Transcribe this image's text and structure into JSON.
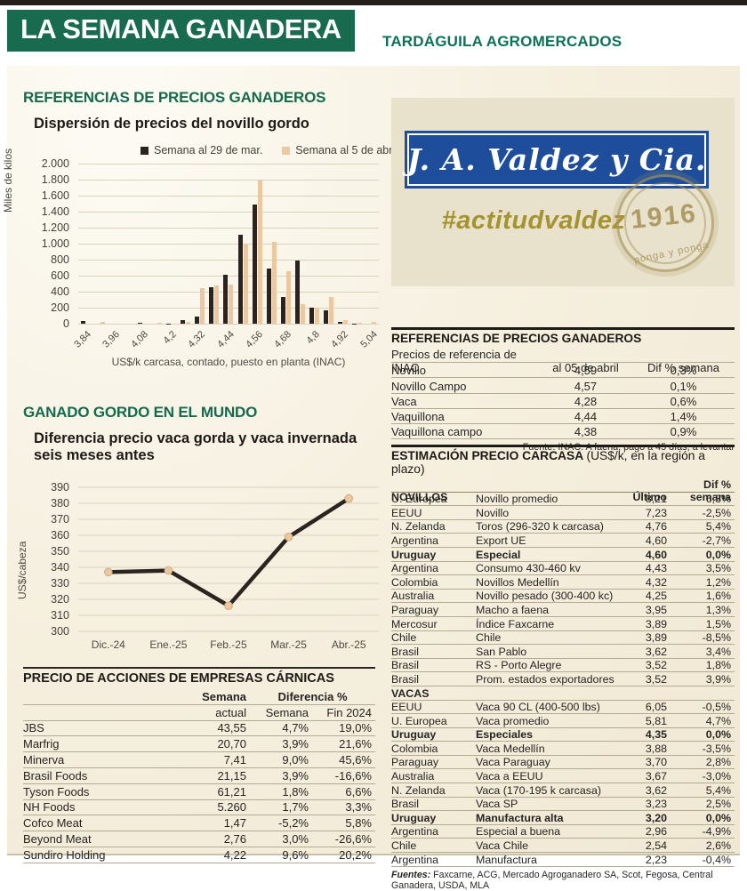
{
  "masthead": {
    "title": "LA SEMANA GANADERA",
    "brand": "TARDÁGUILA AGROMERCADOS"
  },
  "sections": {
    "prices_title": "REFERENCIAS DE PRECIOS GANADEROS",
    "world_title": "GANADO GORDO EN EL MUNDO",
    "world_chart_title_line1": "Diferencia precio vaca gorda y vaca invernada",
    "world_chart_title_line2": "seis meses antes"
  },
  "chart_data": [
    {
      "type": "bar",
      "title": "Dispersión de precios del novillo gordo",
      "categories": [
        "3,84",
        "3,9",
        "3,96",
        "4,02",
        "4,08",
        "4,14",
        "4,2",
        "4,26",
        "4,32",
        "4,38",
        "4,44",
        "4,5",
        "4,56",
        "4,62",
        "4,68",
        "4,74",
        "4,8",
        "4,86",
        "4,92",
        "4,98",
        "5,04"
      ],
      "tick_labels": [
        "3,84",
        "3,96",
        "4,08",
        "4,2",
        "4,32",
        "4,44",
        "4,56",
        "4,68",
        "4,8",
        "4,92",
        "5,04"
      ],
      "series": [
        {
          "name": "Semana al 29 de mar.",
          "color": "#2b2320",
          "values": [
            30,
            0,
            0,
            0,
            10,
            0,
            5,
            40,
            90,
            460,
            610,
            1110,
            1490,
            690,
            330,
            790,
            200,
            170,
            20,
            5,
            0
          ]
        },
        {
          "name": "Semana al 5 de abr.",
          "color": "#ecc8a0",
          "values": [
            0,
            25,
            0,
            0,
            0,
            8,
            5,
            20,
            450,
            480,
            485,
            1000,
            1790,
            1020,
            660,
            240,
            200,
            330,
            40,
            10,
            20
          ]
        }
      ],
      "ylabel": "Miles de kilos",
      "xlabel": "US$/k carcasa, contado, puesto en planta (INAC)",
      "ylim": [
        0,
        2000
      ],
      "yticks": [
        "2.000",
        "1.800",
        "1.600",
        "1.400",
        "1.200",
        "1.000",
        "800",
        "600",
        "400",
        "200",
        "0"
      ],
      "grid": true,
      "legend_position": "top"
    },
    {
      "type": "line",
      "title": "Diferencia precio vaca gorda y vaca invernada seis meses antes",
      "x": [
        "Dic.-24",
        "Ene.-25",
        "Feb.-25",
        "Mar.-25",
        "Abr.-25"
      ],
      "values": [
        337,
        338,
        316,
        359,
        383
      ],
      "ylabel": "US$/cabeza",
      "ylim": [
        300,
        390
      ],
      "yticks": [
        "390",
        "380",
        "370",
        "360",
        "350",
        "340",
        "330",
        "320",
        "310",
        "300"
      ],
      "line_color": "#2b2320",
      "marker_color": "#ecc8a0",
      "grid": true
    }
  ],
  "ad": {
    "logo_text": "J. A. Valdez y Cia.",
    "hashtag": "#actitudvaldez",
    "stamp_year": "1916",
    "stamp_motto": "ponga y ponga",
    "blue": "#1e4e9b",
    "gold": "#a5932f"
  },
  "inac": {
    "title": "REFERENCIAS DE PRECIOS GANADEROS",
    "columns": [
      "Precios de referencia de INAC",
      "al 05 de abril",
      "Dif % semana"
    ],
    "rows": [
      [
        "Novillo",
        "4,59",
        "0,3%"
      ],
      [
        "Novillo Campo",
        "4,57",
        "0,1%"
      ],
      [
        "Vaca",
        "4,28",
        "0,6%"
      ],
      [
        "Vaquillona",
        "4,44",
        "1,4%"
      ],
      [
        "Vaquillona campo",
        "4,38",
        "0,9%"
      ]
    ],
    "source": "Fuente: INAC. A faena, pago a 45 días, a levantar"
  },
  "carcass": {
    "title_bold": "ESTIMACIÓN PRECIO CARCASA",
    "title_note": "(US$/k, en la región a plazo)",
    "section1": "NOVILLOS",
    "section2": "VACAS",
    "col_value": "Último",
    "col_dif": "Dif % semana",
    "novillos": [
      {
        "m": "U. Europea",
        "d": "Novillo promedio",
        "v": "8,21",
        "p": "6,3%"
      },
      {
        "m": "EEUU",
        "d": "Novillo",
        "v": "7,23",
        "p": "-2,5%"
      },
      {
        "m": "N. Zelanda",
        "d": "Toros (296-320 k carcasa)",
        "v": "4,76",
        "p": "5,4%"
      },
      {
        "m": "Argentina",
        "d": "Export UE",
        "v": "4,60",
        "p": "-2,7%"
      },
      {
        "m": "Uruguay",
        "d": "Especial",
        "v": "4,60",
        "p": "0,0%",
        "bold": true
      },
      {
        "m": "Argentina",
        "d": "Consumo 430-460 kv",
        "v": "4,43",
        "p": "3,5%"
      },
      {
        "m": "Colombia",
        "d": "Novillos Medellín",
        "v": "4,32",
        "p": "1,2%"
      },
      {
        "m": "Australia",
        "d": "Novillo pesado (300-400 kc)",
        "v": "4,25",
        "p": "1,6%"
      },
      {
        "m": "Paraguay",
        "d": "Macho a faena",
        "v": "3,95",
        "p": "1,3%"
      },
      {
        "m": "Mercosur",
        "d": "Índice Faxcarne",
        "v": "3,89",
        "p": "1,5%"
      },
      {
        "m": "Chile",
        "d": "Chile",
        "v": "3,89",
        "p": "-8,5%"
      },
      {
        "m": "Brasil",
        "d": "San Pablo",
        "v": "3,62",
        "p": "3,4%"
      },
      {
        "m": "Brasil",
        "d": "RS - Porto Alegre",
        "v": "3,52",
        "p": "1,8%"
      },
      {
        "m": "Brasil",
        "d": "Prom. estados exportadores",
        "v": "3,52",
        "p": "3,9%"
      }
    ],
    "vacas": [
      {
        "m": "EEUU",
        "d": "Vaca 90 CL (400-500 lbs)",
        "v": "6,05",
        "p": "-0,5%"
      },
      {
        "m": "U. Europea",
        "d": "Vaca promedio",
        "v": "5,81",
        "p": "4,7%"
      },
      {
        "m": "Uruguay",
        "d": "Especiales",
        "v": "4,35",
        "p": "0,0%",
        "bold": true
      },
      {
        "m": "Colombia",
        "d": "Vaca Medellín",
        "v": "3,88",
        "p": "-3,5%"
      },
      {
        "m": "Paraguay",
        "d": "Vaca Paraguay",
        "v": "3,70",
        "p": "2,8%"
      },
      {
        "m": "Australia",
        "d": "Vaca a EEUU",
        "v": "3,67",
        "p": "-3,0%"
      },
      {
        "m": "N. Zelanda",
        "d": "Vaca (170-195 k carcasa)",
        "v": "3,62",
        "p": "5,4%"
      },
      {
        "m": "Brasil",
        "d": "Vaca SP",
        "v": "3,23",
        "p": "2,5%"
      },
      {
        "m": "Uruguay",
        "d": "Manufactura alta",
        "v": "3,20",
        "p": "0,0%",
        "bold": true
      },
      {
        "m": "Argentina",
        "d": "Especial a buena",
        "v": "2,96",
        "p": "-4,9%"
      },
      {
        "m": "Chile",
        "d": "Vaca Chile",
        "v": "2,54",
        "p": "2,6%"
      },
      {
        "m": "Argentina",
        "d": "Manufactura",
        "v": "2,23",
        "p": "-0,4%"
      }
    ],
    "source_label": "Fuentes:",
    "source_text": " Faxcarne, ACG, Mercado Agroganadero SA, Scot, Fegosa, Central Ganadera, USDA, MLA"
  },
  "stocks": {
    "title": "PRECIO DE ACCIONES DE EMPRESAS CÁRNICAS",
    "group1": "Semana",
    "group2": "Diferencia %",
    "sub": [
      "actual",
      "Semana",
      "Fin 2024"
    ],
    "rows": [
      [
        "JBS",
        "43,55",
        "4,7%",
        "19,0%"
      ],
      [
        "Marfrig",
        "20,70",
        "3,9%",
        "21,6%"
      ],
      [
        "Minerva",
        "7,41",
        "9,0%",
        "45,6%"
      ],
      [
        "Brasil Foods",
        "21,15",
        "3,9%",
        "-16,6%"
      ],
      [
        "Tyson Foods",
        "61,21",
        "1,8%",
        "6,6%"
      ],
      [
        "NH Foods",
        "5.260",
        "1,7%",
        "3,3%"
      ],
      [
        "Cofco Meat",
        "1,47",
        "-5,2%",
        "5,8%"
      ],
      [
        "Beyond Meat",
        "2,76",
        "3,0%",
        "-26,6%"
      ],
      [
        "Sundiro Holding",
        "4,22",
        "9,6%",
        "20,2%"
      ]
    ]
  },
  "colors": {
    "green": "#186b4f",
    "dark": "#2b2320",
    "tan": "#ecc8a0",
    "cream": "#f3ecd8"
  }
}
